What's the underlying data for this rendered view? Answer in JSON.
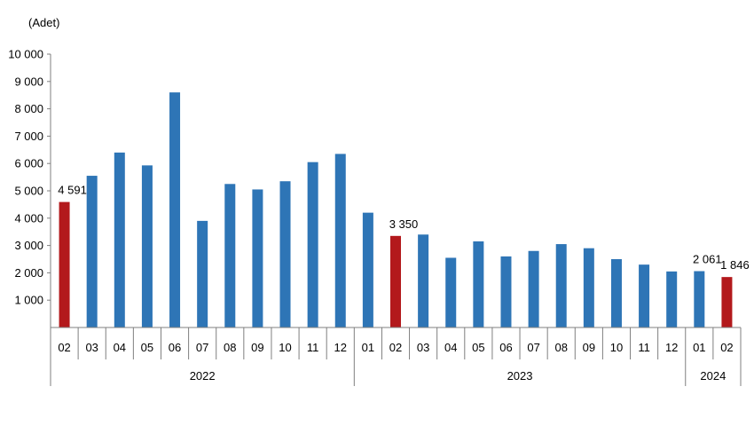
{
  "chart_data": {
    "type": "bar",
    "unit_label": "(Adet)",
    "y_ticks": [
      "1 000",
      "2 000",
      "3 000",
      "4 000",
      "5 000",
      "6 000",
      "7 000",
      "8 000",
      "9 000",
      "10 000"
    ],
    "ylim": [
      0,
      10000
    ],
    "grid": false,
    "x": [
      {
        "month": "02",
        "year": "2022",
        "value": 4591,
        "label": "4 591",
        "highlight": true
      },
      {
        "month": "03",
        "year": "2022",
        "value": 5550
      },
      {
        "month": "04",
        "year": "2022",
        "value": 6400
      },
      {
        "month": "05",
        "year": "2022",
        "value": 5930
      },
      {
        "month": "06",
        "year": "2022",
        "value": 8600
      },
      {
        "month": "07",
        "year": "2022",
        "value": 3900
      },
      {
        "month": "08",
        "year": "2022",
        "value": 5250
      },
      {
        "month": "09",
        "year": "2022",
        "value": 5050
      },
      {
        "month": "10",
        "year": "2022",
        "value": 5350
      },
      {
        "month": "11",
        "year": "2022",
        "value": 6050
      },
      {
        "month": "12",
        "year": "2022",
        "value": 6350
      },
      {
        "month": "01",
        "year": "2023",
        "value": 4200
      },
      {
        "month": "02",
        "year": "2023",
        "value": 3350,
        "label": "3 350",
        "highlight": true
      },
      {
        "month": "03",
        "year": "2023",
        "value": 3400
      },
      {
        "month": "04",
        "year": "2023",
        "value": 2550
      },
      {
        "month": "05",
        "year": "2023",
        "value": 3150
      },
      {
        "month": "06",
        "year": "2023",
        "value": 2600
      },
      {
        "month": "07",
        "year": "2023",
        "value": 2800
      },
      {
        "month": "08",
        "year": "2023",
        "value": 3050
      },
      {
        "month": "09",
        "year": "2023",
        "value": 2900
      },
      {
        "month": "10",
        "year": "2023",
        "value": 2500
      },
      {
        "month": "11",
        "year": "2023",
        "value": 2300
      },
      {
        "month": "12",
        "year": "2023",
        "value": 2050
      },
      {
        "month": "01",
        "year": "2024",
        "value": 2061,
        "label": "2 061"
      },
      {
        "month": "02",
        "year": "2024",
        "value": 1846,
        "label": "1 846",
        "highlight": true
      }
    ],
    "years": [
      "2022",
      "2023",
      "2024"
    ],
    "colors": {
      "default": "#2e75b6",
      "highlight": "#b3191c"
    }
  }
}
